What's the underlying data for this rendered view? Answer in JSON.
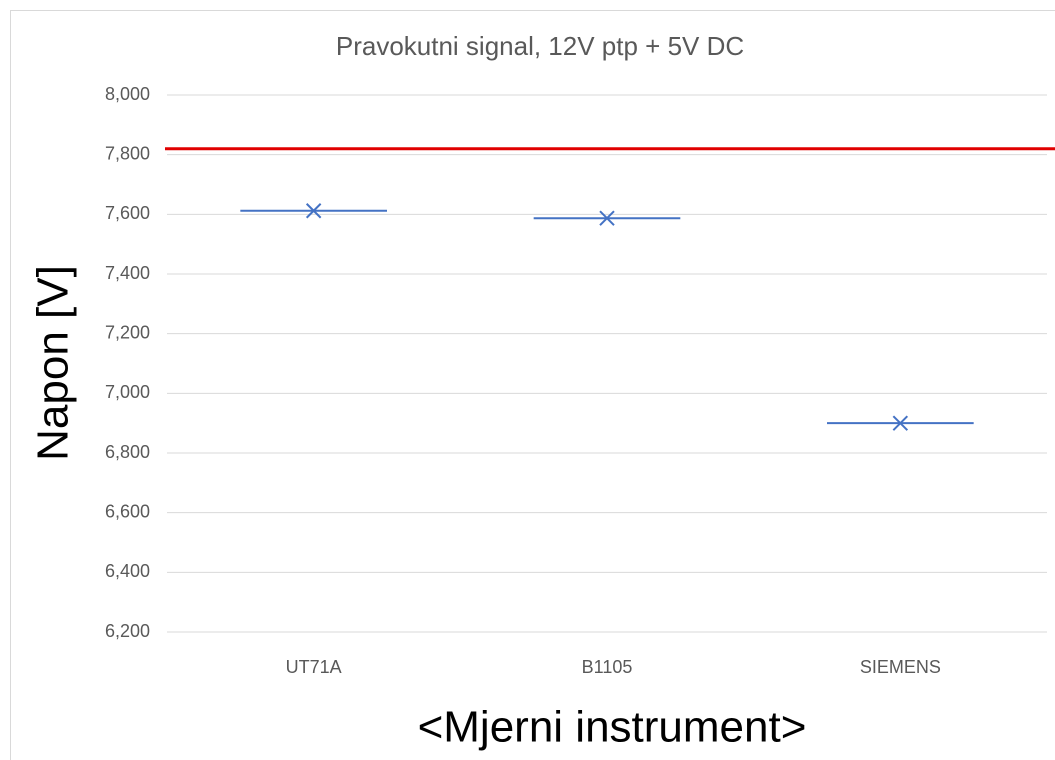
{
  "chart_data": {
    "type": "scatter",
    "title": "Pravokutni signal, 12V ptp + 5V DC",
    "x_label": "<Mjerni instrument>",
    "y_label": "Napon [V]",
    "categories": [
      "UT71A",
      "B1105",
      "SIEMENS"
    ],
    "series": [
      {
        "color": "#4472c4",
        "values": [
          7.612,
          7.587,
          6.9
        ]
      }
    ],
    "reference_line": {
      "value": 7.82,
      "color": "#e00000"
    },
    "ylim": [
      6.2,
      8.0
    ],
    "yticks": [
      {
        "value": 6.2,
        "label": "6,200"
      },
      {
        "value": 6.4,
        "label": "6,400"
      },
      {
        "value": 6.6,
        "label": "6,600"
      },
      {
        "value": 6.8,
        "label": "6,800"
      },
      {
        "value": 7.0,
        "label": "7,000"
      },
      {
        "value": 7.2,
        "label": "7,200"
      },
      {
        "value": 7.4,
        "label": "7,400"
      },
      {
        "value": 7.6,
        "label": "7,600"
      },
      {
        "value": 7.8,
        "label": "7,800"
      },
      {
        "value": 8.0,
        "label": "8,000"
      }
    ],
    "grid": true
  }
}
